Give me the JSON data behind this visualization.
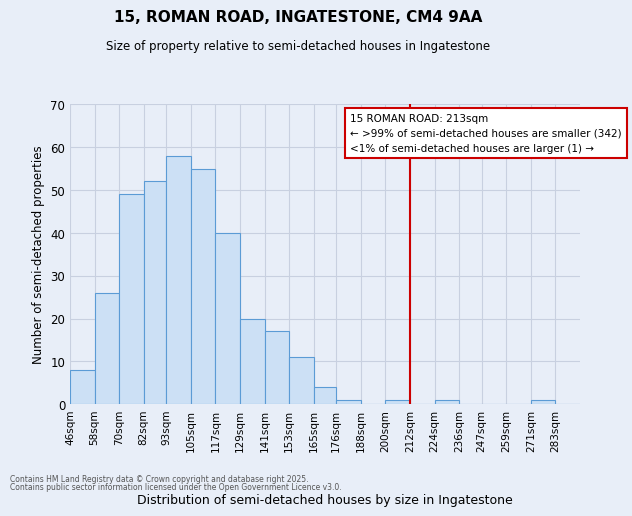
{
  "title": "15, ROMAN ROAD, INGATESTONE, CM4 9AA",
  "subtitle": "Size of property relative to semi-detached houses in Ingatestone",
  "xlabel": "Distribution of semi-detached houses by size in Ingatestone",
  "ylabel": "Number of semi-detached properties",
  "bin_labels": [
    "46sqm",
    "58sqm",
    "70sqm",
    "82sqm",
    "93sqm",
    "105sqm",
    "117sqm",
    "129sqm",
    "141sqm",
    "153sqm",
    "165sqm",
    "176sqm",
    "188sqm",
    "200sqm",
    "212sqm",
    "224sqm",
    "236sqm",
    "247sqm",
    "259sqm",
    "271sqm",
    "283sqm"
  ],
  "bin_edges": [
    46,
    58,
    70,
    82,
    93,
    105,
    117,
    129,
    141,
    153,
    165,
    176,
    188,
    200,
    212,
    224,
    236,
    247,
    259,
    271,
    283,
    295
  ],
  "counts": [
    8,
    26,
    49,
    52,
    58,
    55,
    40,
    20,
    17,
    11,
    4,
    1,
    0,
    1,
    0,
    1,
    0,
    0,
    0,
    1,
    0
  ],
  "bar_facecolor": "#cce0f5",
  "bar_edgecolor": "#5b9bd5",
  "vline_x": 212,
  "vline_color": "#cc0000",
  "legend_title": "15 ROMAN ROAD: 213sqm",
  "legend_line1": "← >99% of semi-detached houses are smaller (342)",
  "legend_line2": "<1% of semi-detached houses are larger (1) →",
  "ylim": [
    0,
    70
  ],
  "yticks": [
    0,
    10,
    20,
    30,
    40,
    50,
    60,
    70
  ],
  "background_color": "#e8eef8",
  "grid_color": "#c8d0e0",
  "footnote1": "Contains HM Land Registry data © Crown copyright and database right 2025.",
  "footnote2": "Contains public sector information licensed under the Open Government Licence v3.0."
}
